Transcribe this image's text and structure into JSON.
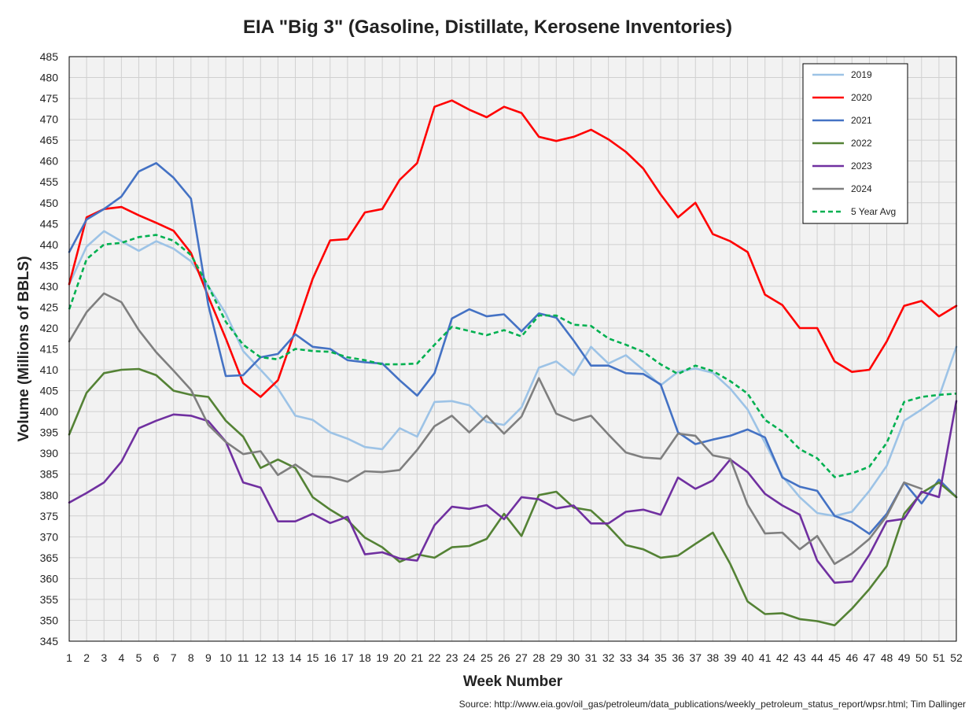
{
  "chart_data": {
    "type": "line",
    "title": "EIA \"Big 3\" (Gasoline, Distillate, Kerosene Inventories)",
    "xlabel": "Week Number",
    "ylabel": "Volume (Millions of BBLS)",
    "source": "Source: http://www.eia.gov/oil_gas/petroleum/data_publications/weekly_petroleum_status_report/wpsr.html; Tim Dallinger",
    "ylim": [
      345,
      485
    ],
    "ytick_step": 5,
    "grid": true,
    "legend_position": "top-right",
    "x": [
      1,
      2,
      3,
      4,
      5,
      6,
      7,
      8,
      9,
      10,
      11,
      12,
      13,
      14,
      15,
      16,
      17,
      18,
      19,
      20,
      21,
      22,
      23,
      24,
      25,
      26,
      27,
      28,
      29,
      30,
      31,
      32,
      33,
      34,
      35,
      36,
      37,
      38,
      39,
      40,
      41,
      42,
      43,
      44,
      45,
      46,
      47,
      48,
      49,
      50,
      51,
      52
    ],
    "series": [
      {
        "name": "2019",
        "color": "#9DC3E6",
        "dash": false,
        "values": [
          430.5,
          439.5,
          443.2,
          440.8,
          438.5,
          440.8,
          439.0,
          436.0,
          430.0,
          423.5,
          414.5,
          410.0,
          405.5,
          399.0,
          398.0,
          395.0,
          393.5,
          391.5,
          391.0,
          396.0,
          394.0,
          402.3,
          402.5,
          401.5,
          397.5,
          396.8,
          401.0,
          410.5,
          412.0,
          408.7,
          415.5,
          411.5,
          413.5,
          410.0,
          406.3,
          409.5,
          410.3,
          409.3,
          405.5,
          400.5,
          392.5,
          384.5,
          379.5,
          375.7,
          375.0,
          376.0,
          381.0,
          387.0,
          397.8,
          400.5,
          403.5,
          415.5
        ]
      },
      {
        "name": "2020",
        "color": "#FF0000",
        "dash": false,
        "values": [
          430.5,
          446.5,
          448.5,
          449.0,
          447.0,
          445.2,
          443.3,
          438.0,
          427.5,
          417.5,
          406.8,
          403.5,
          407.5,
          419.5,
          431.8,
          441.0,
          441.3,
          447.7,
          448.5,
          455.5,
          459.5,
          473.0,
          474.5,
          472.3,
          470.5,
          473.0,
          471.5,
          465.8,
          464.8,
          465.8,
          467.5,
          465.2,
          462.2,
          458.2,
          452.0,
          446.5,
          450.0,
          442.5,
          440.8,
          438.2,
          428.0,
          425.5,
          420.0,
          420.0,
          412.0,
          409.5,
          410.0,
          416.8,
          425.3,
          426.5,
          422.8,
          425.3
        ]
      },
      {
        "name": "2021",
        "color": "#4472C4",
        "dash": false,
        "values": [
          438.2,
          446.0,
          448.5,
          451.5,
          457.5,
          459.5,
          456.0,
          451.0,
          425.5,
          408.5,
          408.7,
          413.0,
          413.8,
          418.5,
          415.5,
          415.0,
          412.3,
          411.8,
          411.5,
          407.5,
          403.8,
          409.2,
          422.3,
          424.5,
          422.8,
          423.3,
          419.2,
          423.5,
          422.5,
          417.0,
          411.0,
          411.0,
          409.2,
          409.0,
          406.5,
          395.0,
          392.2,
          393.3,
          394.2,
          395.7,
          393.8,
          384.2,
          382.0,
          381.0,
          375.0,
          373.5,
          370.7,
          375.5,
          383.0,
          378.0,
          383.7,
          379.5
        ]
      },
      {
        "name": "2022",
        "color": "#548235",
        "dash": false,
        "values": [
          394.5,
          404.5,
          409.2,
          410.0,
          410.2,
          408.7,
          405.0,
          404.0,
          403.5,
          397.8,
          394.0,
          386.5,
          388.5,
          386.5,
          379.5,
          376.5,
          374.0,
          369.8,
          367.5,
          364.0,
          365.8,
          365.0,
          367.5,
          367.8,
          369.5,
          375.5,
          370.2,
          380.0,
          380.8,
          377.0,
          376.3,
          372.5,
          368.0,
          367.0,
          365.0,
          365.5,
          368.3,
          371.0,
          363.5,
          354.5,
          351.5,
          351.7,
          350.3,
          349.8,
          348.8,
          352.8,
          357.5,
          363.0,
          375.5,
          380.5,
          383.0,
          379.5
        ]
      },
      {
        "name": "2023",
        "color": "#7030A0",
        "dash": false,
        "values": [
          378.2,
          380.5,
          383.0,
          388.0,
          396.0,
          397.8,
          399.3,
          399.0,
          397.7,
          392.8,
          383.0,
          381.8,
          373.7,
          373.7,
          375.5,
          373.3,
          374.8,
          365.8,
          366.3,
          364.8,
          364.3,
          372.8,
          377.2,
          376.7,
          377.6,
          374.2,
          379.5,
          379.0,
          376.8,
          377.5,
          373.2,
          373.2,
          376.0,
          376.5,
          375.3,
          384.2,
          381.5,
          383.5,
          388.5,
          385.5,
          380.3,
          377.5,
          375.3,
          364.3,
          359.0,
          359.3,
          365.7,
          373.7,
          374.3,
          380.8,
          379.5,
          402.5
        ]
      },
      {
        "name": "2024",
        "color": "#7F7F7F",
        "dash": false,
        "values": [
          416.8,
          423.8,
          428.3,
          426.2,
          419.5,
          414.2,
          409.8,
          405.2,
          396.8,
          392.7,
          389.8,
          390.5,
          384.8,
          387.3,
          384.5,
          384.3,
          383.2,
          385.7,
          385.5,
          386.0,
          390.8,
          396.5,
          399.0,
          395.0,
          399.0,
          394.7,
          398.8,
          408.0,
          399.5,
          397.8,
          399.0,
          394.5,
          390.2,
          389.0,
          388.7,
          394.7,
          394.2,
          389.5,
          388.7,
          377.7,
          370.8,
          371.0,
          367.0,
          370.2,
          363.5,
          366.0,
          369.5,
          375.0,
          383.0,
          381.5,
          null,
          null
        ]
      },
      {
        "name": "5 Year Avg",
        "color": "#00B050",
        "dash": true,
        "values": [
          424.5,
          436.5,
          440.0,
          440.4,
          441.8,
          442.3,
          440.9,
          437.5,
          430.0,
          421.5,
          416.0,
          413.0,
          412.5,
          415.0,
          414.5,
          414.3,
          413.0,
          412.3,
          411.3,
          411.3,
          411.5,
          416.0,
          420.3,
          419.3,
          418.3,
          419.5,
          418.0,
          423.0,
          423.0,
          420.8,
          420.5,
          417.5,
          416.0,
          414.3,
          411.3,
          409.0,
          411.0,
          409.7,
          407.3,
          404.3,
          398.0,
          395.2,
          391.0,
          388.8,
          384.3,
          385.2,
          386.8,
          392.5,
          402.3,
          403.5,
          404.0,
          404.3
        ]
      }
    ]
  }
}
